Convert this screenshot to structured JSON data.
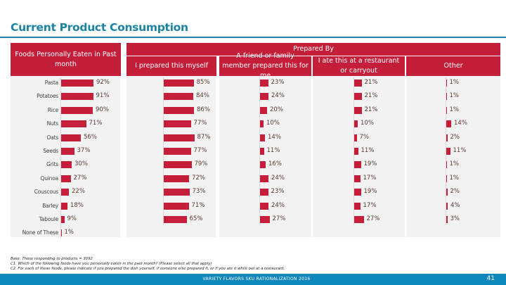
{
  "title": "Current Product Consumption",
  "chart_data": {
    "type": "bar",
    "orientation": "horizontal",
    "title": "Current Product Consumption",
    "categories": [
      "Pasta",
      "Potatoes",
      "Rice",
      "Nuts",
      "Oats",
      "Seeds",
      "Grits",
      "Quinoa",
      "Couscous",
      "Barley",
      "Taboule",
      "None of These"
    ],
    "group_header": "Prepared By",
    "panels": [
      {
        "name": "Foods Personally Eaten in Past month",
        "values": [
          92,
          91,
          90,
          71,
          56,
          37,
          30,
          27,
          22,
          18,
          9,
          1
        ],
        "labels": [
          "92%",
          "91%",
          "90%",
          "71%",
          "56%",
          "37%",
          "30%",
          "27%",
          "22%",
          "18%",
          "9%",
          "1%"
        ]
      },
      {
        "name": "I prepared this  myself",
        "values": [
          85,
          84,
          86,
          77,
          87,
          77,
          79,
          72,
          73,
          71,
          65
        ],
        "labels": [
          "85%",
          "84%",
          "86%",
          "77%",
          "87%",
          "77%",
          "79%",
          "72%",
          "73%",
          "71%",
          "65%"
        ]
      },
      {
        "name": "A friend or family member prepared this for me",
        "values": [
          23,
          24,
          20,
          10,
          14,
          11,
          16,
          24,
          23,
          24,
          27
        ],
        "labels": [
          "23%",
          "24%",
          "20%",
          "10%",
          "14%",
          "11%",
          "16%",
          "24%",
          "23%",
          "24%",
          "27%"
        ]
      },
      {
        "name": "I ate this at a restaurant or carryout",
        "values": [
          21,
          21,
          21,
          10,
          7,
          11,
          19,
          17,
          19,
          17,
          27
        ],
        "labels": [
          "21%",
          "21%",
          "21%",
          "10%",
          "7%",
          "11%",
          "19%",
          "17%",
          "19%",
          "17%",
          "27%"
        ]
      },
      {
        "name": "Other",
        "values": [
          1,
          1,
          1,
          14,
          2,
          11,
          1,
          1,
          2,
          4,
          3
        ],
        "labels": [
          "1%",
          "1%",
          "1%",
          "14%",
          "2%",
          "11%",
          "1%",
          "1%",
          "2%",
          "4%",
          "3%"
        ]
      }
    ],
    "xlim": [
      0,
      100
    ],
    "grid": false,
    "legend": "none"
  },
  "headers": {
    "left": "Foods Personally Eaten in Past month",
    "group": "Prepared By",
    "col1": "I prepared this  myself",
    "col2": "A friend or family member prepared this for me",
    "col3": "I ate this at a restaurant or carryout",
    "col4": "Other"
  },
  "notes": {
    "base": "Base: Those responding to products = 3092",
    "c1": "C1. Which of the following foods have you personally eaten in the past month? (Please select all that apply)",
    "c2": "C2. For each of these foods, please indicate if you prepared the dish yourself, if someone else prepared it, or if you ate it while out at a restaurant."
  },
  "footer": {
    "text": "VARIETY FLAVORS SKU RATIONALIZATION 2016",
    "page": "41"
  },
  "colors": {
    "accent": "#c41e3a",
    "title": "#1a83a6",
    "footer": "#0f87bd",
    "panel": "#f2f2f2"
  }
}
